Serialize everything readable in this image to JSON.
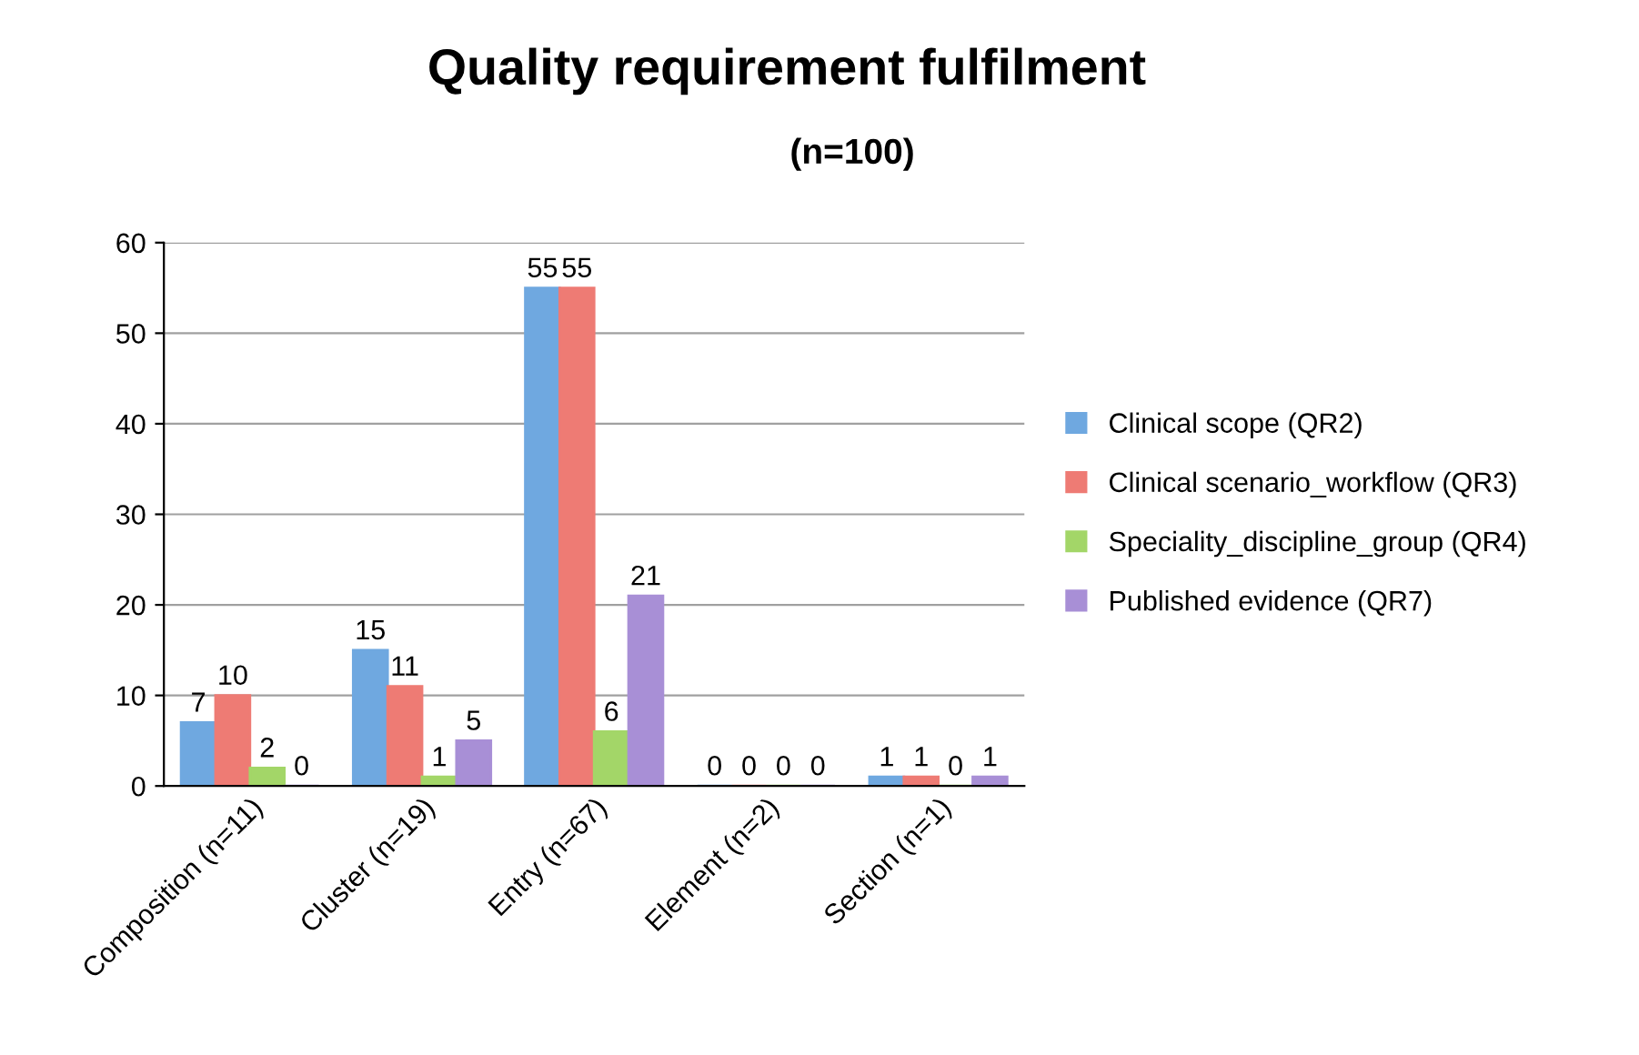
{
  "chart_data": {
    "type": "bar",
    "title": "Quality requirement fulfilment",
    "subtitle": "(n=100)",
    "categories": [
      "Composition (n=11)",
      "Cluster (n=19)",
      "Entry (n=67)",
      "Element (n=2)",
      "Section (n=1)"
    ],
    "series": [
      {
        "name": "Clinical scope (QR2)",
        "color": "#6fa8e0",
        "values": [
          7,
          15,
          55,
          0,
          1
        ]
      },
      {
        "name": "Clinical scenario_workflow (QR3)",
        "color": "#ee7b74",
        "values": [
          10,
          11,
          55,
          0,
          1
        ]
      },
      {
        "name": "Speciality_discipline_group (QR4)",
        "color": "#a3d668",
        "values": [
          2,
          1,
          6,
          0,
          0
        ]
      },
      {
        "name": "Published evidence (QR7)",
        "color": "#a88fd6",
        "values": [
          0,
          5,
          21,
          0,
          1
        ]
      }
    ],
    "ylim": [
      0,
      60
    ],
    "yticks": [
      0,
      10,
      20,
      30,
      40,
      50,
      60
    ],
    "grid": "y",
    "legend": "right",
    "data_labels": true
  }
}
